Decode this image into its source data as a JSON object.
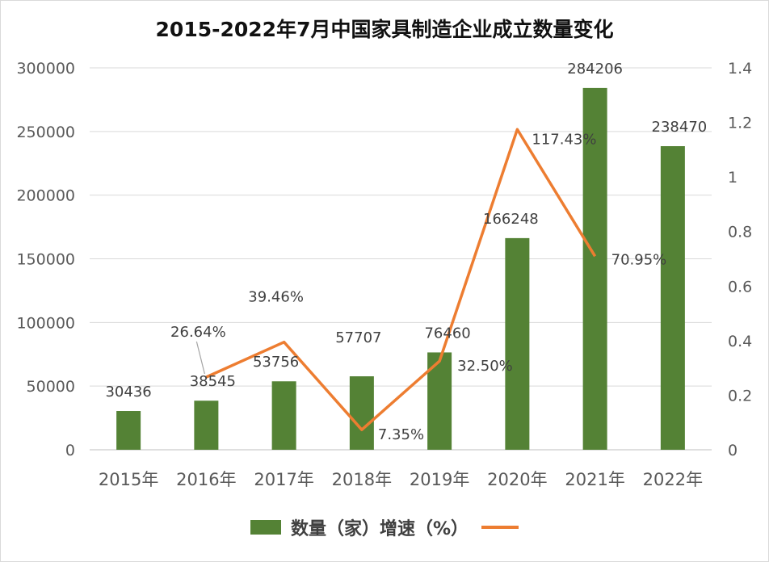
{
  "chart_data": {
    "title": "2015-2022年7月中国家具制造企业成立数量变化",
    "type": "bar+line",
    "categories": [
      "2015年",
      "2016年",
      "2017年",
      "2018年",
      "2019年",
      "2020年",
      "2021年",
      "2022年"
    ],
    "series": [
      {
        "name": "数量（家）",
        "type": "bar",
        "axis": "left",
        "color": "#548235",
        "values": [
          30436,
          38545,
          53756,
          57707,
          76460,
          166248,
          284206,
          238470
        ],
        "labels": [
          "30436",
          "38545",
          "53756",
          "57707",
          "76460",
          "166248",
          "284206",
          "238470"
        ]
      },
      {
        "name": "增速（%）",
        "type": "line",
        "axis": "right",
        "color": "#ED7D31",
        "values": [
          null,
          0.2664,
          0.3946,
          0.0735,
          0.325,
          1.1743,
          0.7095,
          null
        ],
        "labels": [
          null,
          "26.64%",
          "39.46%",
          "7.35%",
          "32.50%",
          "117.43%",
          "70.95%",
          null
        ]
      }
    ],
    "y_left": {
      "min": 0,
      "max": 300000,
      "ticks": [
        "0",
        "50000",
        "100000",
        "150000",
        "200000",
        "250000",
        "300000"
      ]
    },
    "y_right": {
      "min": 0,
      "max": 1.4,
      "ticks": [
        "0",
        "0.2",
        "0.4",
        "0.6",
        "0.8",
        "1",
        "1.2",
        "1.4"
      ]
    },
    "grid": true,
    "legend": "bottom",
    "legend_labels": [
      "数量（家）",
      "增速（%）"
    ]
  }
}
